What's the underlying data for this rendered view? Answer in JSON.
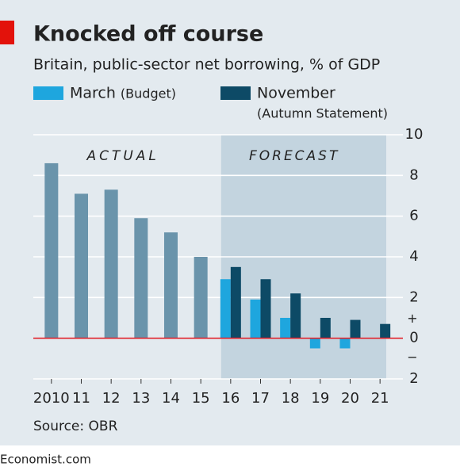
{
  "chart_data": {
    "type": "bar",
    "title": "Knocked off course",
    "subtitle": "Britain, public-sector net borrowing, % of GDP",
    "categories": [
      "2010",
      "11",
      "12",
      "13",
      "14",
      "15",
      "16",
      "17",
      "18",
      "19",
      "20",
      "21"
    ],
    "values": [
      8.6,
      7.1,
      7.3,
      5.9,
      5.2,
      4.0,
      null,
      null,
      null,
      null,
      null,
      null
    ],
    "color": "#6a94ab",
    "series": [
      {
        "name": "March",
        "name_note": "(Budget)",
        "color": "#1ea6de",
        "values": [
          null,
          null,
          null,
          null,
          null,
          null,
          2.9,
          1.9,
          1.0,
          -0.5,
          -0.5,
          null
        ]
      },
      {
        "name": "November",
        "name_note": "(Autumn Statement)",
        "color": "#0d4a66",
        "values": [
          null,
          null,
          null,
          null,
          null,
          null,
          3.5,
          2.9,
          2.2,
          1.0,
          0.9,
          0.7
        ]
      }
    ],
    "annotations": {
      "actual": "ACTUAL",
      "forecast": "FORECAST",
      "plus": "+",
      "minus": "−"
    },
    "source": "Source: OBR",
    "footer": "Economist.com",
    "ylim": [
      -2,
      10
    ],
    "yticks": [
      {
        "value": -2,
        "label": "2"
      },
      0,
      2,
      4,
      6,
      8,
      10
    ],
    "grid": true,
    "zero_line_color": "#e0222b"
  }
}
